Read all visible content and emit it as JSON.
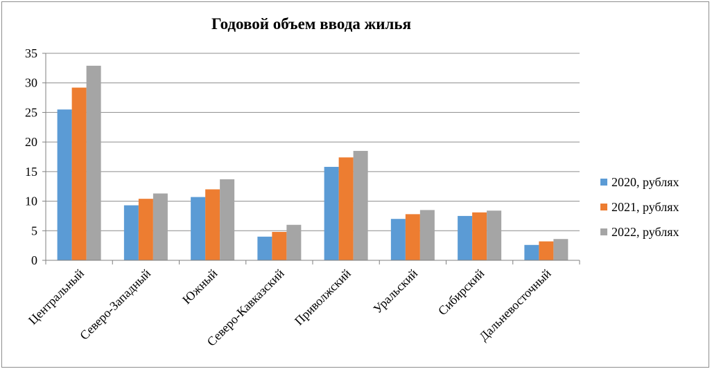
{
  "chart_data": {
    "type": "bar",
    "title": "Годовой объем ввода жилья",
    "categories": [
      "Центральный",
      "Северо-Западный",
      "Южный",
      "Северо-Кавказский",
      "Приволжский",
      "Уральский",
      "Сибирский",
      "Дальневосточный"
    ],
    "series": [
      {
        "name": "2020, рублях",
        "color": "#5b9bd5",
        "values": [
          25.5,
          9.3,
          10.7,
          4.0,
          15.8,
          7.0,
          7.5,
          2.6
        ]
      },
      {
        "name": "2021, рублях",
        "color": "#ed7d31",
        "values": [
          29.2,
          10.4,
          12.0,
          4.8,
          17.4,
          7.8,
          8.1,
          3.2
        ]
      },
      {
        "name": "2022, рублях",
        "color": "#a5a5a5",
        "values": [
          32.9,
          11.3,
          13.7,
          6.0,
          18.5,
          8.5,
          8.4,
          3.6
        ]
      }
    ],
    "ylim": [
      0,
      35
    ],
    "yticks": [
      "0",
      "5",
      "10",
      "15",
      "20",
      "25",
      "30",
      "35"
    ],
    "ytick_values": [
      0,
      5,
      10,
      15,
      20,
      25,
      30,
      35
    ],
    "grid": true,
    "legend": "right"
  }
}
